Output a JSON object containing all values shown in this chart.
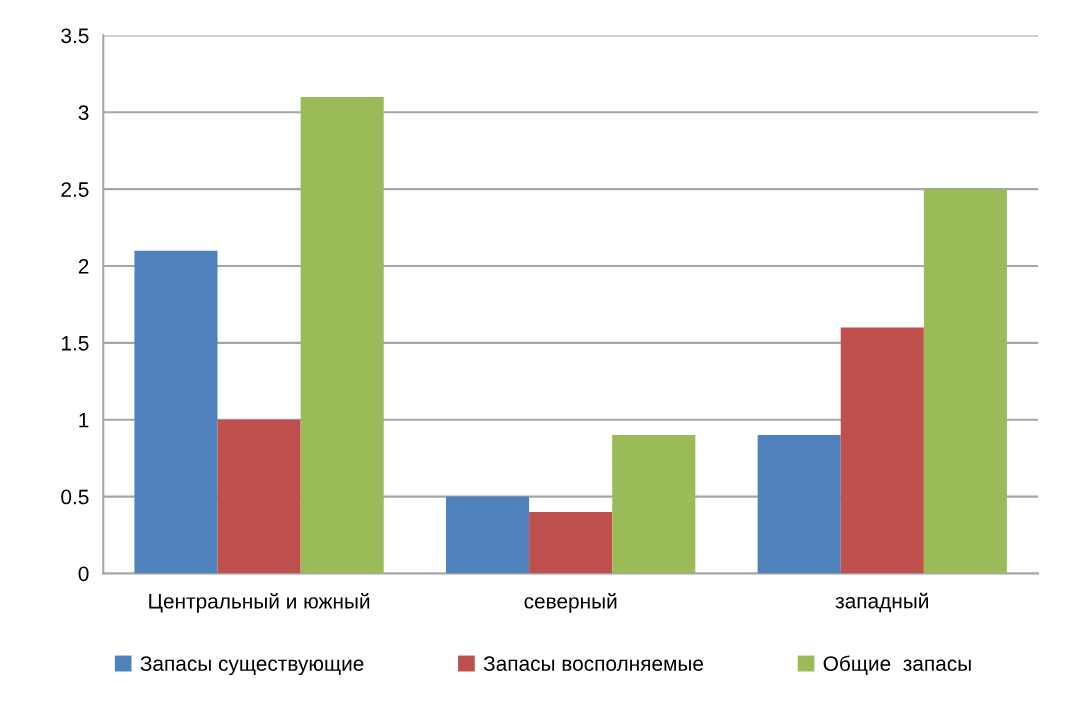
{
  "chart_data": {
    "type": "bar",
    "categories": [
      "Центральный и южный",
      "северный",
      "западный"
    ],
    "series": [
      {
        "name": "Запасы существующие",
        "color": "#4f81bd",
        "values": [
          2.1,
          0.5,
          0.9
        ]
      },
      {
        "name": "Запасы восполняемые",
        "color": "#c0504d",
        "values": [
          1.0,
          0.4,
          1.6
        ]
      },
      {
        "name": "Общие  запасы",
        "color": "#9bbb59",
        "values": [
          3.1,
          0.9,
          2.5
        ]
      }
    ],
    "ylim": [
      0,
      3.5
    ],
    "yticks": [
      0,
      0.5,
      1,
      1.5,
      2,
      2.5,
      3,
      3.5
    ],
    "grid": "y",
    "legend": "bottom"
  }
}
